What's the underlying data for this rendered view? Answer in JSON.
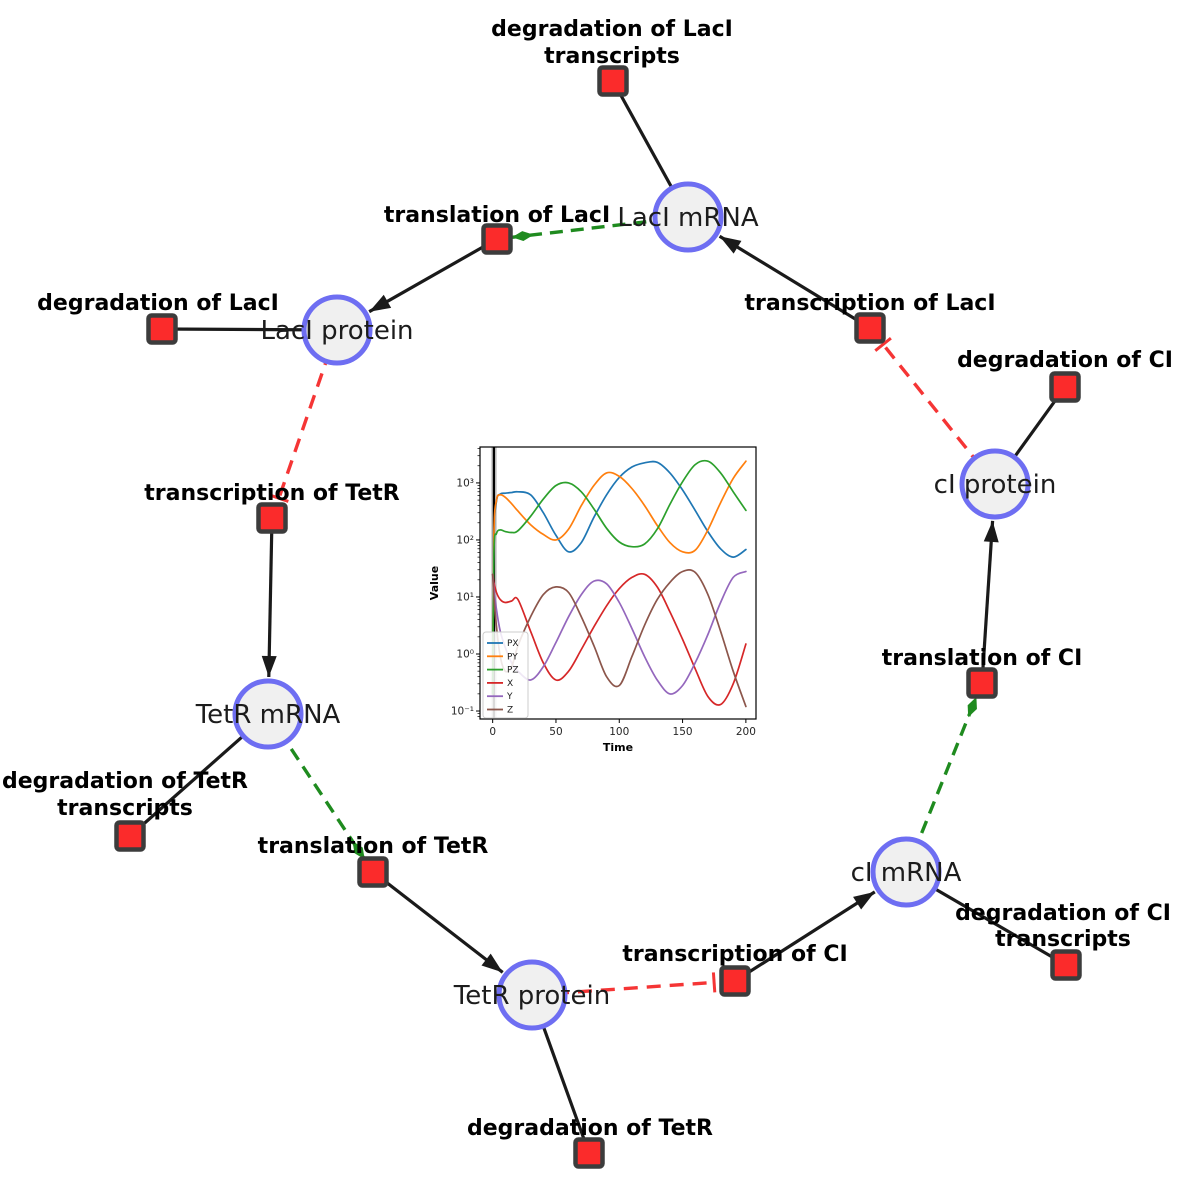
{
  "diagram": {
    "species": [
      {
        "label": "LacI mRNA"
      },
      {
        "label": "LacI protein"
      },
      {
        "label": "TetR mRNA"
      },
      {
        "label": "TetR protein"
      },
      {
        "label": "cI mRNA"
      },
      {
        "label": "cI protein"
      }
    ],
    "reactions": [
      {
        "label": "degradation of LacI",
        "label2": "transcripts"
      },
      {
        "label": "translation of LacI"
      },
      {
        "label": "transcription of LacI"
      },
      {
        "label": "degradation of LacI"
      },
      {
        "label": "degradation of CI"
      },
      {
        "label": "transcription of TetR"
      },
      {
        "label": "translation of CI"
      },
      {
        "label": "degradation of TetR",
        "label2": "transcripts"
      },
      {
        "label": "translation of TetR"
      },
      {
        "label": "degradation of CI",
        "label2": "transcripts"
      },
      {
        "label": "transcription of CI"
      },
      {
        "label": "degradation of TetR"
      }
    ],
    "colors": {
      "species_fill": "#f0f0f0",
      "species_border": "#6e6ef2",
      "reaction_fill": "#fb2b2b",
      "reaction_border": "#3c3c3c",
      "edge_black": "#1a1a1a",
      "activation_green": "#1f8b1f",
      "inhibition_red": "#f53535"
    }
  },
  "chart_data": {
    "type": "line",
    "title": "",
    "xlabel": "Time",
    "ylabel": "Value",
    "yscale": "log",
    "grid": false,
    "legend_position": "lower left",
    "xlim": [
      -10,
      208
    ],
    "ylim_log10": [
      -1.14,
      3.63
    ],
    "xticks": [
      0,
      50,
      100,
      150,
      200
    ],
    "ytick_exponents": [
      -1,
      0,
      1,
      2,
      3
    ],
    "ytick_labels": [
      "10⁻¹",
      "10⁰",
      "10¹",
      "10²",
      "10³"
    ],
    "vline_x": 1,
    "time": [
      0,
      1,
      3,
      6,
      10,
      15,
      20,
      30,
      40,
      50,
      60,
      70,
      80,
      90,
      100,
      110,
      120,
      130,
      140,
      150,
      160,
      170,
      180,
      190,
      200
    ],
    "series": [
      {
        "name": "PX",
        "color": "#1f77b4",
        "values": [
          0.2,
          100,
          480,
          640,
          660,
          680,
          700,
          620,
          300,
          120,
          62,
          90,
          250,
          620,
          1250,
          1900,
          2250,
          2300,
          1500,
          750,
          330,
          140,
          70,
          50,
          68
        ]
      },
      {
        "name": "PY",
        "color": "#ff7f0e",
        "values": [
          0.2,
          120,
          500,
          620,
          560,
          430,
          320,
          185,
          125,
          100,
          155,
          400,
          900,
          1500,
          1300,
          800,
          400,
          180,
          90,
          62,
          66,
          150,
          450,
          1200,
          2400
        ]
      },
      {
        "name": "PZ",
        "color": "#2ca02c",
        "values": [
          0.2,
          60,
          130,
          150,
          140,
          135,
          145,
          260,
          520,
          900,
          1000,
          700,
          350,
          160,
          92,
          76,
          85,
          155,
          420,
          1050,
          2100,
          2400,
          1500,
          700,
          330
        ]
      },
      {
        "name": "X",
        "color": "#d62728",
        "values": [
          25,
          18,
          12,
          9,
          8,
          8.5,
          9,
          2.5,
          0.7,
          0.35,
          0.5,
          1.2,
          3,
          7,
          14,
          22,
          25,
          15,
          5.5,
          1.8,
          0.55,
          0.18,
          0.13,
          0.3,
          1.5
        ]
      },
      {
        "name": "Y",
        "color": "#9467bd",
        "values": [
          25,
          14,
          6,
          2.5,
          1.3,
          0.7,
          0.5,
          0.35,
          0.6,
          1.6,
          4.5,
          11,
          19,
          17,
          8,
          2.8,
          0.9,
          0.35,
          0.2,
          0.28,
          0.7,
          2.2,
          8,
          22,
          28
        ]
      },
      {
        "name": "Z",
        "color": "#8c564b",
        "values": [
          25,
          10,
          3,
          0.9,
          0.5,
          0.6,
          1.4,
          4.5,
          11,
          15,
          12,
          4.5,
          1.4,
          0.4,
          0.28,
          0.9,
          3.2,
          9,
          18,
          28,
          27,
          11,
          2.5,
          0.5,
          0.12
        ]
      }
    ]
  }
}
